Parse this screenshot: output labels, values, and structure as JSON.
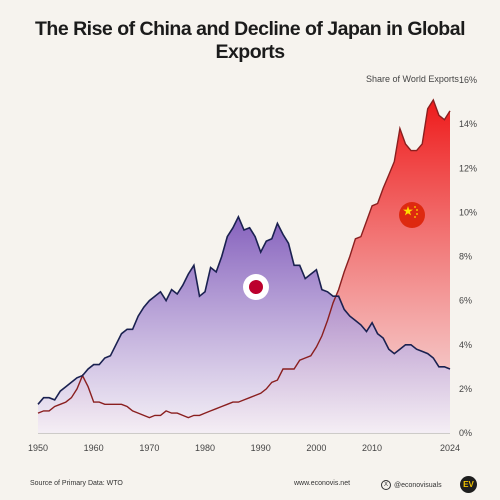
{
  "title": "The Rise of China and Decline of Japan in Global Exports",
  "footer": {
    "source": "Source of Primary Data: WTO",
    "website": "www.econovis.net",
    "social": "@econovisuals",
    "logo": "EV"
  },
  "chart_data": {
    "type": "area",
    "title": "The Rise of China and Decline of Japan in Global Exports",
    "ylabel": "Share of World Exports",
    "xlim": [
      1950,
      2024
    ],
    "ylim": [
      0,
      16
    ],
    "x_ticks": [
      1950,
      1960,
      1970,
      1980,
      1990,
      2000,
      2010,
      2024
    ],
    "y_ticks": [
      0,
      2,
      4,
      6,
      8,
      10,
      12,
      14,
      16
    ],
    "y_tick_labels": [
      "0%",
      "2%",
      "4%",
      "6%",
      "8%",
      "10%",
      "12%",
      "14%",
      "16%"
    ],
    "grid": false,
    "legend": "flags",
    "series": [
      {
        "flag": "japan",
        "color": "#1a2150",
        "fill_top": "#8a63c2",
        "x": [
          1950,
          1951,
          1952,
          1953,
          1954,
          1955,
          1956,
          1957,
          1958,
          1959,
          1960,
          1961,
          1962,
          1963,
          1964,
          1965,
          1966,
          1967,
          1968,
          1969,
          1970,
          1971,
          1972,
          1973,
          1974,
          1975,
          1976,
          1977,
          1978,
          1979,
          1980,
          1981,
          1982,
          1983,
          1984,
          1985,
          1986,
          1987,
          1988,
          1989,
          1990,
          1991,
          1992,
          1993,
          1994,
          1995,
          1996,
          1997,
          1998,
          1999,
          2000,
          2001,
          2002,
          2003,
          2004,
          2005,
          2006,
          2007,
          2008,
          2009,
          2010,
          2011,
          2012,
          2013,
          2014,
          2015,
          2016,
          2017,
          2018,
          2019,
          2020,
          2021,
          2022,
          2023,
          2024
        ],
        "values": [
          1.3,
          1.6,
          1.6,
          1.5,
          1.9,
          2.1,
          2.3,
          2.5,
          2.6,
          2.9,
          3.1,
          3.1,
          3.4,
          3.5,
          4.0,
          4.5,
          4.7,
          4.7,
          5.3,
          5.7,
          6.0,
          6.2,
          6.4,
          6.0,
          6.5,
          6.3,
          6.7,
          7.2,
          7.6,
          6.2,
          6.4,
          7.5,
          7.3,
          8.0,
          8.9,
          9.3,
          9.8,
          9.2,
          9.3,
          8.9,
          8.2,
          8.7,
          8.8,
          9.5,
          9.0,
          8.6,
          7.6,
          7.6,
          7.0,
          7.2,
          7.4,
          6.5,
          6.4,
          6.2,
          6.2,
          5.6,
          5.3,
          5.1,
          4.9,
          4.6,
          5.0,
          4.5,
          4.3,
          3.8,
          3.6,
          3.8,
          4.0,
          4.0,
          3.8,
          3.7,
          3.6,
          3.4,
          3.0,
          3.0,
          2.9
        ]
      },
      {
        "flag": "china",
        "color": "#8a1f1f",
        "fill_top": "#ee1a1a",
        "x": [
          1950,
          1951,
          1952,
          1953,
          1954,
          1955,
          1956,
          1957,
          1958,
          1959,
          1960,
          1961,
          1962,
          1963,
          1964,
          1965,
          1966,
          1967,
          1968,
          1969,
          1970,
          1971,
          1972,
          1973,
          1974,
          1975,
          1976,
          1977,
          1978,
          1979,
          1980,
          1981,
          1982,
          1983,
          1984,
          1985,
          1986,
          1987,
          1988,
          1989,
          1990,
          1991,
          1992,
          1993,
          1994,
          1995,
          1996,
          1997,
          1998,
          1999,
          2000,
          2001,
          2002,
          2003,
          2004,
          2005,
          2006,
          2007,
          2008,
          2009,
          2010,
          2011,
          2012,
          2013,
          2014,
          2015,
          2016,
          2017,
          2018,
          2019,
          2020,
          2021,
          2022,
          2023,
          2024
        ],
        "values": [
          0.9,
          1.0,
          1.0,
          1.2,
          1.3,
          1.4,
          1.6,
          2.0,
          2.6,
          2.1,
          1.4,
          1.4,
          1.3,
          1.3,
          1.3,
          1.3,
          1.2,
          1.0,
          0.9,
          0.8,
          0.7,
          0.8,
          0.8,
          1.0,
          0.9,
          0.9,
          0.8,
          0.7,
          0.8,
          0.8,
          0.9,
          1.0,
          1.1,
          1.2,
          1.3,
          1.4,
          1.4,
          1.5,
          1.6,
          1.7,
          1.8,
          2.0,
          2.3,
          2.4,
          2.9,
          2.9,
          2.9,
          3.3,
          3.4,
          3.5,
          3.9,
          4.4,
          5.1,
          5.9,
          6.5,
          7.3,
          8.0,
          8.8,
          8.9,
          9.6,
          10.3,
          10.4,
          11.1,
          11.7,
          12.3,
          13.8,
          13.1,
          12.8,
          12.8,
          13.1,
          14.7,
          15.1,
          14.4,
          14.2,
          14.6
        ]
      }
    ]
  }
}
